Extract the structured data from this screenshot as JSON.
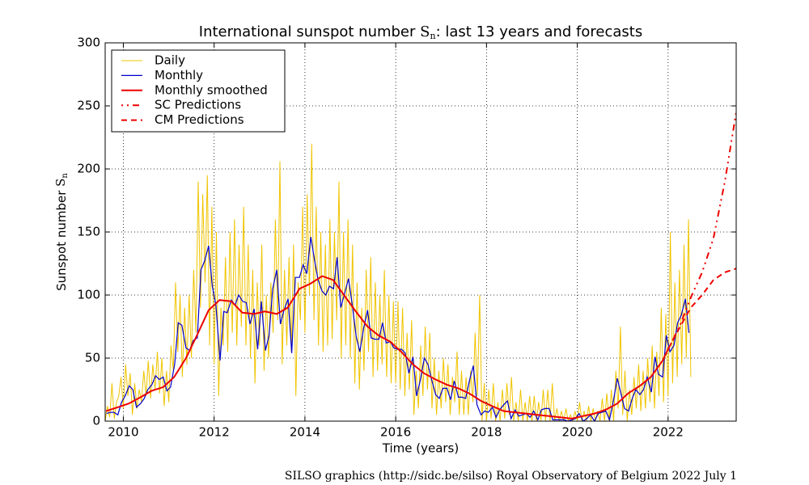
{
  "chart_data": {
    "type": "line",
    "title": {
      "text": "International sunspot number",
      "symbol": "S",
      "sub": "n",
      "rest": ": last 13 years and forecasts"
    },
    "xlabel": "Time (years)",
    "ylabel": {
      "text": "Sunspot number",
      "symbol": "S",
      "sub": "n"
    },
    "footer": "SILSO graphics (http://sidc.be/silso)  Royal Observatory of Belgium  2022 July 1",
    "xlim": [
      2009.6,
      2023.5
    ],
    "xticks": [
      2010,
      2012,
      2014,
      2016,
      2018,
      2020,
      2022
    ],
    "ylim": [
      0,
      300
    ],
    "yticks": [
      0,
      50,
      100,
      150,
      200,
      250,
      300
    ],
    "grid": true,
    "legend": "upper-left",
    "series": [
      {
        "name": "Daily",
        "color": "#f0c400",
        "style": "solid",
        "width": 1,
        "x": [
          2009.6,
          2009.65,
          2009.7,
          2009.75,
          2009.8,
          2009.85,
          2009.9,
          2009.95,
          2010.0,
          2010.05,
          2010.1,
          2010.15,
          2010.2,
          2010.25,
          2010.3,
          2010.35,
          2010.4,
          2010.45,
          2010.5,
          2010.55,
          2010.6,
          2010.65,
          2010.7,
          2010.75,
          2010.8,
          2010.85,
          2010.9,
          2010.95,
          2011.0,
          2011.05,
          2011.1,
          2011.15,
          2011.2,
          2011.25,
          2011.3,
          2011.35,
          2011.4,
          2011.45,
          2011.5,
          2011.55,
          2011.6,
          2011.65,
          2011.7,
          2011.75,
          2011.8,
          2011.85,
          2011.9,
          2011.95,
          2012.0,
          2012.05,
          2012.1,
          2012.15,
          2012.2,
          2012.25,
          2012.3,
          2012.35,
          2012.4,
          2012.45,
          2012.5,
          2012.55,
          2012.6,
          2012.65,
          2012.7,
          2012.75,
          2012.8,
          2012.85,
          2012.9,
          2012.95,
          2013.0,
          2013.05,
          2013.1,
          2013.15,
          2013.2,
          2013.25,
          2013.3,
          2013.35,
          2013.4,
          2013.45,
          2013.5,
          2013.55,
          2013.6,
          2013.65,
          2013.7,
          2013.75,
          2013.8,
          2013.85,
          2013.9,
          2013.95,
          2014.0,
          2014.05,
          2014.1,
          2014.15,
          2014.2,
          2014.25,
          2014.3,
          2014.35,
          2014.4,
          2014.45,
          2014.5,
          2014.55,
          2014.6,
          2014.65,
          2014.7,
          2014.75,
          2014.8,
          2014.85,
          2014.9,
          2014.95,
          2015.0,
          2015.05,
          2015.1,
          2015.15,
          2015.2,
          2015.25,
          2015.3,
          2015.35,
          2015.4,
          2015.45,
          2015.5,
          2015.55,
          2015.6,
          2015.65,
          2015.7,
          2015.75,
          2015.8,
          2015.85,
          2015.9,
          2015.95,
          2016.0,
          2016.05,
          2016.1,
          2016.15,
          2016.2,
          2016.25,
          2016.3,
          2016.35,
          2016.4,
          2016.45,
          2016.5,
          2016.55,
          2016.6,
          2016.65,
          2016.7,
          2016.75,
          2016.8,
          2016.85,
          2016.9,
          2016.95,
          2017.0,
          2017.05,
          2017.1,
          2017.15,
          2017.2,
          2017.25,
          2017.3,
          2017.35,
          2017.4,
          2017.45,
          2017.5,
          2017.55,
          2017.6,
          2017.65,
          2017.7,
          2017.75,
          2017.8,
          2017.85,
          2017.9,
          2017.95,
          2018.0,
          2018.05,
          2018.1,
          2018.15,
          2018.2,
          2018.25,
          2018.3,
          2018.35,
          2018.4,
          2018.45,
          2018.5,
          2018.55,
          2018.6,
          2018.65,
          2018.7,
          2018.75,
          2018.8,
          2018.85,
          2018.9,
          2018.95,
          2019.0,
          2019.05,
          2019.1,
          2019.15,
          2019.2,
          2019.25,
          2019.3,
          2019.35,
          2019.4,
          2019.45,
          2019.5,
          2019.55,
          2019.6,
          2019.65,
          2019.7,
          2019.75,
          2019.8,
          2019.85,
          2019.9,
          2019.95,
          2020.0,
          2020.05,
          2020.1,
          2020.15,
          2020.2,
          2020.25,
          2020.3,
          2020.35,
          2020.4,
          2020.45,
          2020.5,
          2020.55,
          2020.6,
          2020.65,
          2020.7,
          2020.75,
          2020.8,
          2020.85,
          2020.9,
          2020.95,
          2021.0,
          2021.05,
          2021.1,
          2021.15,
          2021.2,
          2021.25,
          2021.3,
          2021.35,
          2021.4,
          2021.45,
          2021.5,
          2021.55,
          2021.6,
          2021.65,
          2021.7,
          2021.75,
          2021.8,
          2021.85,
          2021.9,
          2021.95,
          2022.0,
          2022.05,
          2022.1,
          2022.15,
          2022.2,
          2022.25,
          2022.3,
          2022.35,
          2022.4,
          2022.45,
          2022.5
        ],
        "values": [
          0,
          12,
          3,
          30,
          2,
          15,
          20,
          35,
          10,
          45,
          20,
          38,
          5,
          30,
          10,
          25,
          15,
          40,
          20,
          48,
          18,
          45,
          25,
          55,
          22,
          50,
          12,
          40,
          15,
          60,
          40,
          110,
          55,
          100,
          35,
          90,
          45,
          100,
          50,
          120,
          70,
          190,
          90,
          180,
          110,
          195,
          60,
          170,
          45,
          150,
          20,
          90,
          60,
          130,
          55,
          150,
          70,
          160,
          60,
          140,
          75,
          170,
          60,
          140,
          50,
          120,
          30,
          110,
          60,
          140,
          40,
          100,
          50,
          110,
          70,
          160,
          80,
          206,
          45,
          120,
          60,
          130,
          55,
          140,
          20,
          110,
          80,
          170,
          70,
          180,
          100,
          220,
          80,
          170,
          60,
          150,
          55,
          140,
          60,
          160,
          65,
          150,
          80,
          190,
          50,
          150,
          60,
          160,
          50,
          140,
          30,
          110,
          25,
          90,
          40,
          120,
          55,
          130,
          35,
          110,
          40,
          100,
          45,
          120,
          35,
          100,
          30,
          95,
          30,
          95,
          25,
          90,
          20,
          70,
          25,
          80,
          5,
          40,
          10,
          60,
          20,
          75,
          25,
          70,
          10,
          50,
          5,
          40,
          10,
          50,
          15,
          45,
          5,
          35,
          15,
          55,
          5,
          40,
          5,
          35,
          5,
          40,
          15,
          70,
          20,
          100,
          0,
          30,
          0,
          25,
          2,
          30,
          0,
          15,
          0,
          25,
          2,
          30,
          5,
          35,
          0,
          15,
          0,
          25,
          0,
          15,
          0,
          20,
          0,
          20,
          0,
          15,
          0,
          25,
          0,
          25,
          0,
          30,
          0,
          10,
          0,
          8,
          0,
          10,
          0,
          5,
          0,
          8,
          0,
          15,
          0,
          8,
          0,
          12,
          0,
          10,
          0,
          8,
          0,
          18,
          0,
          22,
          0,
          25,
          0,
          40,
          10,
          75,
          5,
          40,
          0,
          25,
          5,
          35,
          10,
          45,
          8,
          40,
          10,
          50,
          15,
          60,
          10,
          55,
          20,
          90,
          15,
          85,
          20,
          150,
          30,
          110,
          35,
          120,
          45,
          140,
          50,
          160,
          35
        ]
      },
      {
        "name": "Monthly",
        "color": "#0000cc",
        "style": "solid",
        "width": 1.2,
        "x": [
          2009.63,
          2009.71,
          2009.79,
          2009.88,
          2009.96,
          2010.04,
          2010.13,
          2010.21,
          2010.29,
          2010.38,
          2010.46,
          2010.54,
          2010.63,
          2010.71,
          2010.79,
          2010.88,
          2010.96,
          2011.04,
          2011.13,
          2011.21,
          2011.29,
          2011.38,
          2011.46,
          2011.54,
          2011.63,
          2011.71,
          2011.79,
          2011.88,
          2011.96,
          2012.04,
          2012.13,
          2012.21,
          2012.29,
          2012.38,
          2012.46,
          2012.54,
          2012.63,
          2012.71,
          2012.79,
          2012.88,
          2012.96,
          2013.04,
          2013.13,
          2013.21,
          2013.29,
          2013.38,
          2013.46,
          2013.54,
          2013.63,
          2013.71,
          2013.79,
          2013.88,
          2013.96,
          2014.04,
          2014.13,
          2014.21,
          2014.29,
          2014.38,
          2014.46,
          2014.54,
          2014.63,
          2014.71,
          2014.79,
          2014.88,
          2014.96,
          2015.04,
          2015.13,
          2015.21,
          2015.29,
          2015.38,
          2015.46,
          2015.54,
          2015.63,
          2015.71,
          2015.79,
          2015.88,
          2015.96,
          2016.04,
          2016.13,
          2016.21,
          2016.29,
          2016.38,
          2016.46,
          2016.54,
          2016.63,
          2016.71,
          2016.79,
          2016.88,
          2016.96,
          2017.04,
          2017.13,
          2017.21,
          2017.29,
          2017.38,
          2017.46,
          2017.54,
          2017.63,
          2017.71,
          2017.79,
          2017.88,
          2017.96,
          2018.04,
          2018.13,
          2018.21,
          2018.29,
          2018.38,
          2018.46,
          2018.54,
          2018.63,
          2018.71,
          2018.79,
          2018.88,
          2018.96,
          2019.04,
          2019.13,
          2019.21,
          2019.29,
          2019.38,
          2019.46,
          2019.54,
          2019.63,
          2019.71,
          2019.79,
          2019.88,
          2019.96,
          2020.04,
          2020.13,
          2020.21,
          2020.29,
          2020.38,
          2020.46,
          2020.54,
          2020.63,
          2020.71,
          2020.79,
          2020.88,
          2020.96,
          2021.04,
          2021.13,
          2021.21,
          2021.29,
          2021.38,
          2021.46,
          2021.54,
          2021.63,
          2021.71,
          2021.79,
          2021.88,
          2021.96,
          2022.04,
          2022.13,
          2022.21,
          2022.29,
          2022.38,
          2022.46
        ],
        "values": [
          6,
          7,
          7,
          5,
          15,
          20,
          28,
          25,
          11,
          14,
          18,
          25,
          29,
          36,
          33,
          35,
          24,
          27,
          45,
          78,
          76,
          58,
          56,
          64,
          66,
          120,
          127,
          139,
          107,
          92,
          48,
          87,
          86,
          96,
          92,
          100,
          95,
          94,
          77,
          89,
          57,
          95,
          56,
          68,
          105,
          120,
          77,
          88,
          97,
          54,
          114,
          114,
          124,
          117,
          146,
          128,
          112,
          103,
          100,
          107,
          105,
          130,
          90,
          102,
          113,
          93,
          67,
          55,
          73,
          88,
          66,
          65,
          65,
          78,
          62,
          63,
          58,
          57,
          57,
          54,
          38,
          51,
          20,
          32,
          50,
          45,
          33,
          21,
          18,
          26,
          26,
          17,
          32,
          19,
          19,
          18,
          33,
          44,
          13,
          5,
          8,
          7,
          11,
          3,
          9,
          13,
          16,
          2,
          9,
          4,
          5,
          6,
          3,
          8,
          1,
          9,
          10,
          10,
          1,
          1,
          1,
          1,
          0,
          1,
          2,
          6,
          0,
          2,
          5,
          0,
          6,
          7,
          8,
          1,
          15,
          34,
          22,
          10,
          8,
          18,
          25,
          21,
          25,
          35,
          23,
          51,
          37,
          35,
          68,
          55,
          60,
          78,
          84,
          97,
          70
        ]
      },
      {
        "name": "Monthly smoothed",
        "color": "#ee0000",
        "style": "solid",
        "width": 2,
        "x": [
          2009.62,
          2009.88,
          2010.12,
          2010.38,
          2010.62,
          2010.88,
          2011.12,
          2011.38,
          2011.62,
          2011.88,
          2012.12,
          2012.38,
          2012.62,
          2012.88,
          2013.12,
          2013.38,
          2013.62,
          2013.88,
          2014.12,
          2014.38,
          2014.62,
          2014.88,
          2015.12,
          2015.38,
          2015.62,
          2015.88,
          2016.12,
          2016.38,
          2016.62,
          2016.88,
          2017.12,
          2017.38,
          2017.62,
          2017.88,
          2018.12,
          2018.38,
          2018.62,
          2018.88,
          2019.12,
          2019.38,
          2019.62,
          2019.88,
          2020.12,
          2020.38,
          2020.62,
          2020.88,
          2021.12,
          2021.38,
          2021.62,
          2021.88,
          2022.0
        ],
        "values": [
          8,
          11,
          14,
          19,
          24,
          27,
          35,
          50,
          68,
          88,
          96,
          95,
          86,
          85,
          87,
          85,
          90,
          105,
          109,
          115,
          112,
          99,
          87,
          75,
          68,
          63,
          55,
          45,
          38,
          33,
          29,
          26,
          22,
          16,
          12,
          8,
          7,
          6,
          5,
          4,
          3,
          2,
          4,
          6,
          9,
          14,
          22,
          28,
          35,
          48,
          57
        ]
      },
      {
        "name": "SC Predictions",
        "color": "#ee0000",
        "style": "dashdot",
        "width": 2,
        "x": [
          2022.0,
          2022.25,
          2022.5,
          2022.75,
          2023.0,
          2023.25,
          2023.5
        ],
        "values": [
          57,
          75,
          98,
          118,
          145,
          190,
          245
        ]
      },
      {
        "name": "CM Predictions",
        "color": "#ee0000",
        "style": "dashed",
        "width": 2,
        "x": [
          2022.0,
          2022.25,
          2022.5,
          2022.75,
          2023.0,
          2023.25,
          2023.5
        ],
        "values": [
          57,
          74,
          90,
          100,
          112,
          118,
          121
        ]
      }
    ]
  }
}
